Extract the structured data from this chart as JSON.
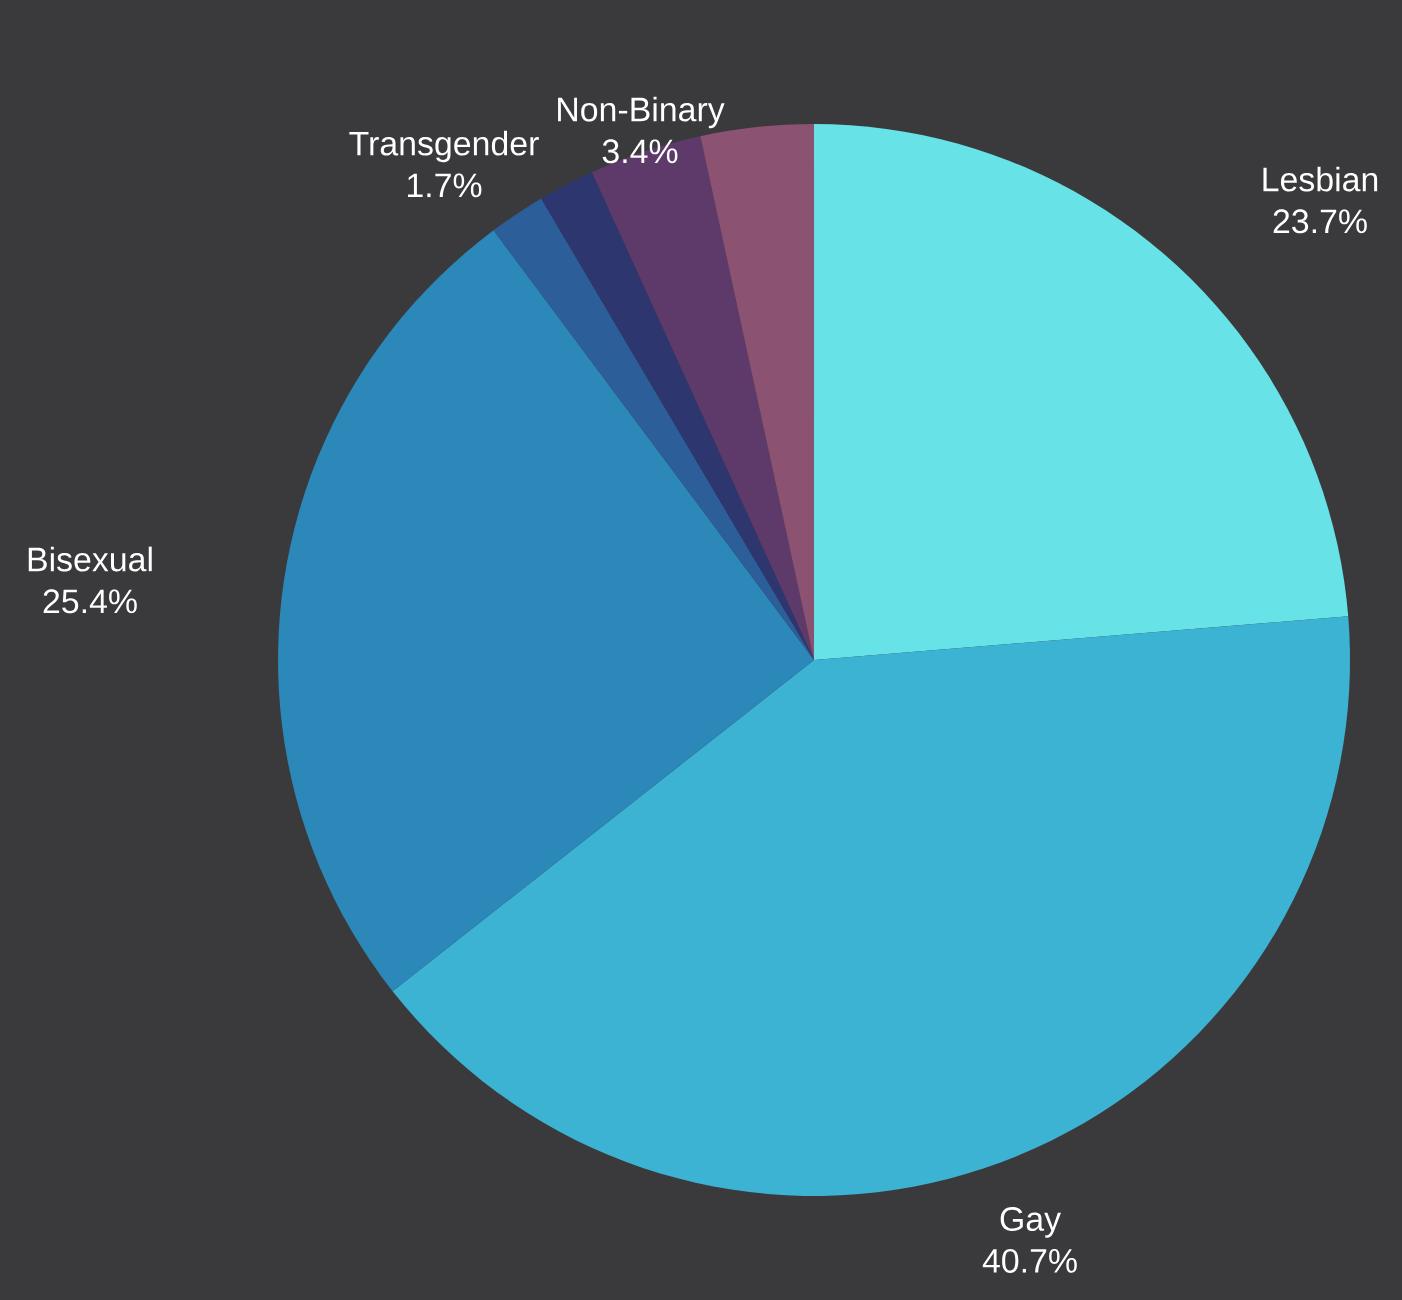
{
  "chart_data": {
    "type": "pie",
    "categories": [
      "Lesbian",
      "Gay",
      "Bisexual",
      null,
      "Transgender",
      "Non-Binary",
      null
    ],
    "values": [
      23.7,
      40.7,
      25.4,
      1.7,
      1.7,
      3.4,
      3.4
    ],
    "value_labels": [
      "23.7%",
      "40.7%",
      "25.4%",
      null,
      "1.7%",
      "3.4%",
      null
    ],
    "colors": [
      "#67e3e8",
      "#3db3d4",
      "#2b88b8",
      "#2c5f9a",
      "#2e3670",
      "#5e3a6b",
      "#8c5272"
    ]
  }
}
